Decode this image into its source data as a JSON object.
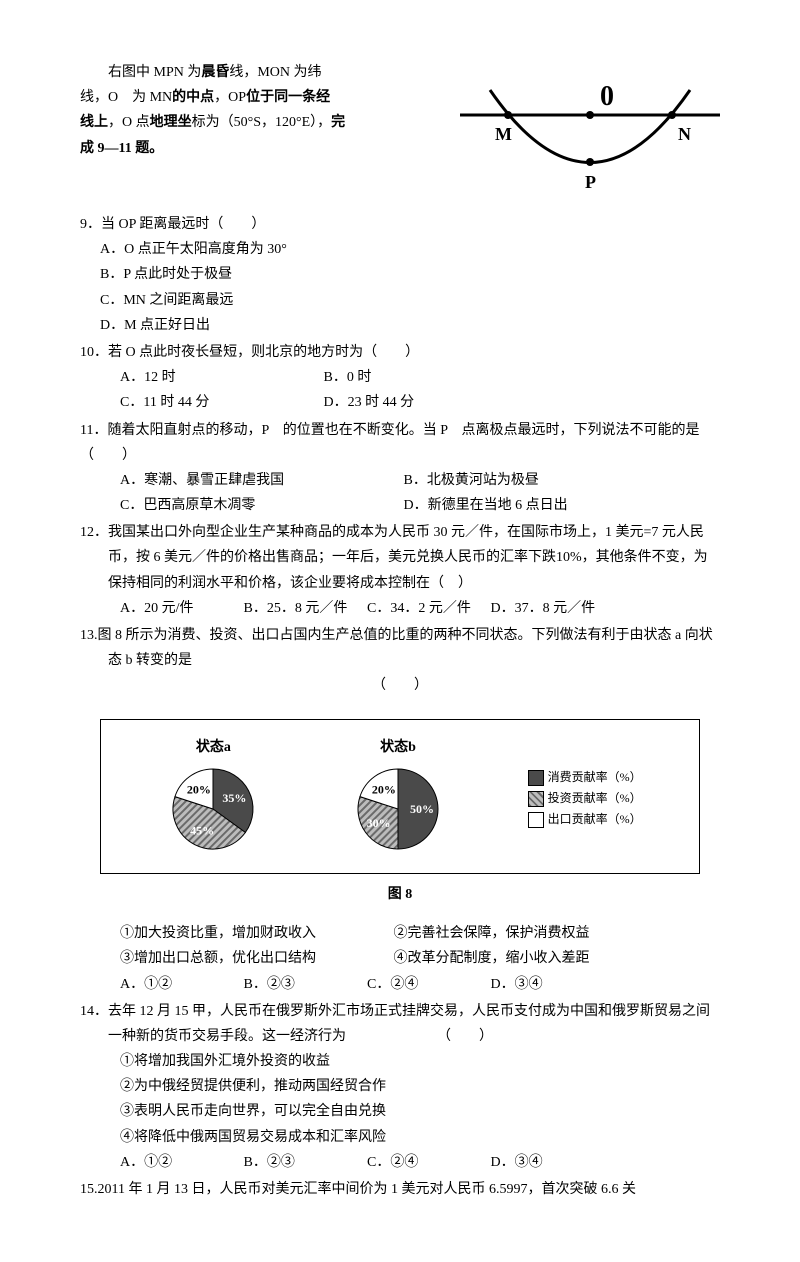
{
  "intro": {
    "line1": "右图中 MPN 为",
    "bold1": "晨昏",
    "line1b": "线，MON 为纬",
    "line2a": "线，O　为 MN",
    "bold2": "的中点",
    "line2b": "，OP",
    "bold3": "位于同一条经",
    "line3a": "线上",
    "line3b": "，O 点",
    "bold4": "地理坐",
    "line3c": "标为（50°S，120°E），",
    "bold5": "完",
    "line4": "成 9—11 题。"
  },
  "diagram1": {
    "O": "0",
    "M": "M",
    "N": "N",
    "P": "P",
    "stroke": "#000000",
    "line_width": 3
  },
  "q9": {
    "stem": "9．当 OP 距离最远时（　　）",
    "A": "A．O 点正午太阳高度角为 30°",
    "B": "B．P 点此时处于极昼",
    "C": "C．MN 之间距离最远",
    "D": "D．M 点正好日出"
  },
  "q10": {
    "stem": "10．若 O 点此时夜长昼短，则北京的地方时为（　　）",
    "A": "A．12 时",
    "B": "B．0 时",
    "C": "C．11 时 44 分",
    "D": "D．23 时 44 分"
  },
  "q11": {
    "stem": "11．随着太阳直射点的移动，P　的位置也在不断变化。当 P　点离极点最远时，下列说法不可能的是（　　）",
    "A": "A．寒潮、暴雪正肆虐我国",
    "B": "B．北极黄河站为极昼",
    "C": "C．巴西高原草木凋零",
    "D": "D．新德里在当地 6 点日出"
  },
  "q12": {
    "stem": "12．我国某出口外向型企业生产某种商品的成本为人民币 30 元／件，在国际市场上，1 美元=7 元人民币，按 6 美元／件的价格出售商品；一年后，美元兑换人民币的汇率下跌10%，其他条件不变，为保持相同的利润水平和价格，该企业要将成本控制在（　）",
    "A": "A．20 元/件",
    "B": "B．25．8 元／件",
    "C": "C．34．2 元／件",
    "D": "D．37．8 元／件"
  },
  "q13": {
    "stem": "13.图 8 所示为消费、投资、出口占国内生产总值的比重的两种不同状态。下列做法有利于由状态 a 向状态 b 转变的是",
    "blank": "（　　）",
    "s1": "①加大投资比重，增加财政收入",
    "s2": "②完善社会保障，保护消费权益",
    "s3": "③增加出口总额，优化出口结构",
    "s4": "④改革分配制度，缩小收入差距",
    "A": "A．①②",
    "B": "B．②③",
    "C": "C．②④",
    "D": "D．③④"
  },
  "fig8": {
    "titleA": "状态a",
    "titleB": "状态b",
    "a": {
      "consume": 35,
      "invest": 45,
      "export": 20,
      "labels": {
        "c": "35%",
        "i": "45%",
        "e": "20%"
      }
    },
    "b": {
      "consume": 50,
      "invest": 30,
      "export": 20,
      "labels": {
        "c": "50%",
        "i": "30%",
        "e": "20%"
      }
    },
    "colors": {
      "consume_fill": "#4a4a4a",
      "invest_fill": "#bcbcbc",
      "invest_hatch": "#6a6a6a",
      "export_fill": "#ffffff",
      "label_text": "#ffffff",
      "label_text_dark": "#000000",
      "stroke": "#000000"
    },
    "legend": {
      "c": "消费贡献率（%）",
      "i": "投资贡献率（%）",
      "e": "出口贡献率（%）"
    },
    "caption": "图 8"
  },
  "q14": {
    "stem": "14．去年 12 月 15 甲，人民币在俄罗斯外汇市场正式挂牌交易，人民币支付成为中国和俄罗斯贸易之间一种新的货币交易手段。这一经济行为　　　　　　　（　　）",
    "s1": "①将增加我国外汇境外投资的收益",
    "s2": "②为中俄经贸提供便利，推动两国经贸合作",
    "s3": "③表明人民币走向世界，可以完全自由兑换",
    "s4": "④将降低中俄两国贸易交易成本和汇率风险",
    "A": "A．①②",
    "B": "B．②③",
    "C": "C．②④",
    "D": "D．③④"
  },
  "q15": {
    "stem": "15.2011 年 1 月 13 日，人民币对美元汇率中间价为 1 美元对人民币 6.5997，首次突破 6.6 关"
  }
}
